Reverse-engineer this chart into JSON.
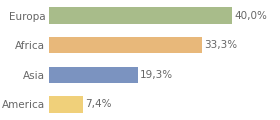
{
  "categories": [
    "America",
    "Asia",
    "Africa",
    "Europa"
  ],
  "values": [
    7.4,
    19.3,
    33.3,
    40.0
  ],
  "labels": [
    "7,4%",
    "19,3%",
    "33,3%",
    "40,0%"
  ],
  "bar_colors": [
    "#f0d07a",
    "#7b93c0",
    "#e8b87a",
    "#a8bc8a"
  ],
  "background_color": "#ffffff",
  "xlim": [
    0,
    50
  ],
  "bar_height": 0.55,
  "label_fontsize": 7.5,
  "tick_fontsize": 7.5,
  "label_color": "#666666",
  "tick_color": "#666666"
}
